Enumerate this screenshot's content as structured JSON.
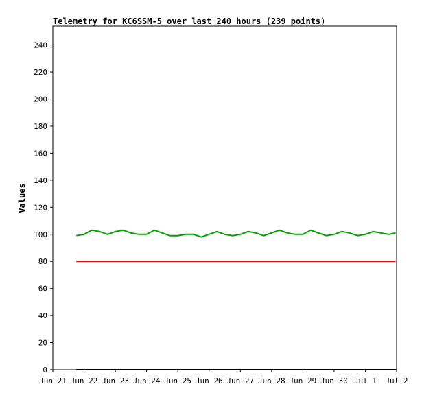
{
  "chart_data": {
    "type": "line",
    "title": "Telemetry for KC6SSM-5 over last 240 hours (239 points)",
    "xlabel": "",
    "ylabel": "Values",
    "xlim": [
      0,
      11
    ],
    "ylim": [
      0,
      254
    ],
    "x_ticks": [
      "Jun 21",
      "Jun 22",
      "Jun 23",
      "Jun 24",
      "Jun 25",
      "Jun 26",
      "Jun 27",
      "Jun 28",
      "Jun 29",
      "Jun 30",
      "Jul 1",
      "Jul 2"
    ],
    "y_ticks": [
      0,
      20,
      40,
      60,
      80,
      100,
      120,
      140,
      160,
      180,
      200,
      220,
      240
    ],
    "grid": false,
    "legend": "none",
    "series": [
      {
        "color": "#00a000",
        "x": [
          0.75,
          1.0,
          1.25,
          1.5,
          1.75,
          2.0,
          2.25,
          2.5,
          2.75,
          3.0,
          3.25,
          3.5,
          3.75,
          4.0,
          4.25,
          4.5,
          4.75,
          5.0,
          5.25,
          5.5,
          5.75,
          6.0,
          6.25,
          6.5,
          6.75,
          7.0,
          7.25,
          7.5,
          7.75,
          8.0,
          8.25,
          8.5,
          8.75,
          9.0,
          9.25,
          9.5,
          9.75,
          10.0,
          10.25,
          10.5,
          10.75,
          10.97
        ],
        "y": [
          99,
          100,
          103,
          102,
          100,
          102,
          103,
          101,
          100,
          100,
          103,
          101,
          99,
          99,
          100,
          100,
          98,
          100,
          102,
          100,
          99,
          100,
          102,
          101,
          99,
          101,
          103,
          101,
          100,
          100,
          103,
          101,
          99,
          100,
          102,
          101,
          99,
          100,
          102,
          101,
          100,
          101
        ]
      },
      {
        "color": "#ff0000",
        "x": [
          0.75,
          10.97
        ],
        "y": [
          80,
          80
        ]
      },
      {
        "color": "#000000",
        "x": [
          0.75,
          10.97
        ],
        "y": [
          0,
          0
        ]
      }
    ]
  }
}
